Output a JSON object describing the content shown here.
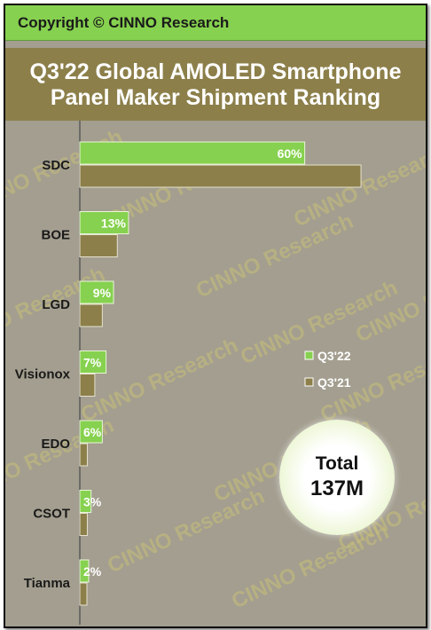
{
  "header": {
    "copyright": "Copyright © CINNO Research",
    "title_line1": "Q3'22 Global AMOLED Smartphone",
    "title_line2": "Panel Maker Shipment Ranking"
  },
  "total": {
    "label": "Total",
    "value": "137M"
  },
  "watermark": "CINNO Research",
  "colors": {
    "background": "#a39e8f",
    "header_green": "#86d14f",
    "title_band": "#8c7f4a",
    "q3_22": "#86d14f",
    "q3_21": "#8c7f4a"
  },
  "chart_data": {
    "type": "bar",
    "orientation": "horizontal",
    "title": "Q3'22 Global AMOLED Smartphone Panel Maker Shipment Ranking",
    "categories": [
      "SDC",
      "BOE",
      "LGD",
      "Visionox",
      "EDO",
      "CSOT",
      "Tianma"
    ],
    "series": [
      {
        "name": "Q3'22",
        "values": [
          60,
          13,
          9,
          7,
          6,
          3,
          2
        ],
        "labels": [
          "60%",
          "13%",
          "9%",
          "7%",
          "6%",
          "3%",
          "2%"
        ],
        "color": "#86d14f"
      },
      {
        "name": "Q3'21",
        "values": [
          75,
          10,
          6,
          4,
          2,
          2,
          1.5
        ],
        "color": "#8c7f4a"
      }
    ],
    "xlim": [
      0,
      80
    ],
    "legend": "right-middle",
    "grid": false
  }
}
